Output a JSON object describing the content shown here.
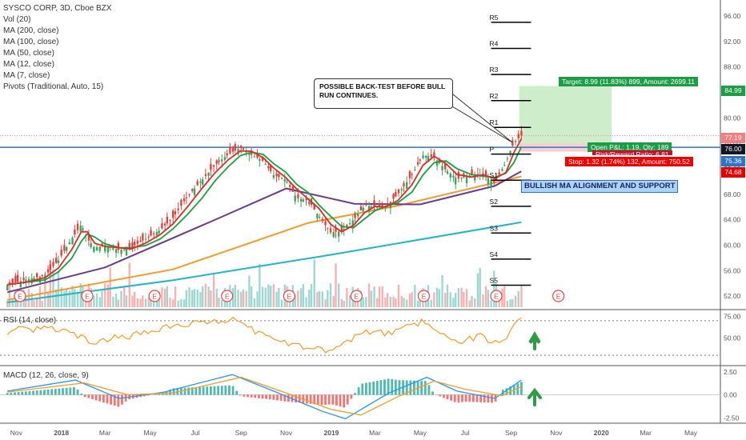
{
  "legend": {
    "title": "SYSCO CORP, 3D, Cboe BZX",
    "items": [
      "Vol (20)",
      "MA (200, close)",
      "MA (100, close)",
      "MA (50, close)",
      "MA (12, close)",
      "MA (7, close)",
      "Pivots (Traditional, Auto, 15)"
    ]
  },
  "rsi_label": "RSI (14, close)",
  "macd_label": "MACD (12, 26, close, 9)",
  "callout_text": "POSSIBLE BACK-TEST BEFORE BULL RUN CONTINUES.",
  "position": {
    "target": "Target: 8.99 (11.83%) 899, Amount: 2699.11",
    "open_pl": "Open P&L: 1.19, Qty: 189",
    "risk_reward": "Risk/Reward Ratio: 6.81",
    "stop": "Stop: 1.32 (1.74%) 132, Amount: 750.52"
  },
  "annotation": "BULLISH MA ALIGNMENT AND SUPPORT",
  "price_tags": [
    {
      "value": "84.99",
      "color": "#1b9c45"
    },
    {
      "value": "77.19",
      "color": "#f57f7f"
    },
    {
      "value": "76.00",
      "color": "#131722"
    },
    {
      "value": "75.36",
      "color": "#2f73c5"
    },
    {
      "value": "74.68",
      "color": "#e00000"
    }
  ],
  "colors": {
    "up": "#26a69a",
    "down": "#ef5350",
    "candle_up": "#3aa35b",
    "candle_down": "#e0403b",
    "ma200": "#1fb5c9",
    "ma100": "#f39a2c",
    "ma50": "#6a3a8c",
    "ma12": "#1a9e3f",
    "ma7": "#d92b2b",
    "support_line": "#2f73c5",
    "rsi": "#f39a2c",
    "macd": "#2196f3",
    "signal": "#f39a2c",
    "target_zone": "#b9e6b5",
    "stop_zone": "#f6c3c3"
  },
  "chart_data": {
    "type": "candlestick",
    "title": "SYSCO CORP, 3D, Cboe BZX",
    "x_ticks": [
      "Nov",
      "2018",
      "Mar",
      "May",
      "Jul",
      "Sep",
      "Nov",
      "2019",
      "Mar",
      "May",
      "Jul",
      "Sep",
      "Nov",
      "2020",
      "Mar",
      "May"
    ],
    "y_ticks": [
      "96.00",
      "92.00",
      "88.00",
      "84.00",
      "80.00",
      "76.00",
      "72.00",
      "68.00",
      "64.00",
      "60.00",
      "56.00",
      "52.00"
    ],
    "ylim": [
      50,
      98
    ],
    "price_series": [
      {
        "name": "close",
        "points": [
          [
            "2017-10-20",
            53.8
          ],
          [
            "2017-11-15",
            54.6
          ],
          [
            "2017-12-10",
            55.2
          ],
          [
            "2017-12-28",
            57.6
          ],
          [
            "2018-01-15",
            61.0
          ],
          [
            "2018-01-28",
            63.2
          ],
          [
            "2018-02-05",
            61.0
          ],
          [
            "2018-02-15",
            59.6
          ],
          [
            "2018-03-01",
            60.0
          ],
          [
            "2018-03-20",
            59.2
          ],
          [
            "2018-04-05",
            59.6
          ],
          [
            "2018-04-25",
            61.0
          ],
          [
            "2018-05-15",
            62.4
          ],
          [
            "2018-06-01",
            64.3
          ],
          [
            "2018-06-20",
            67.6
          ],
          [
            "2018-07-10",
            70.2
          ],
          [
            "2018-07-28",
            72.6
          ],
          [
            "2018-08-15",
            74.3
          ],
          [
            "2018-08-31",
            75.3
          ],
          [
            "2018-09-15",
            74.2
          ],
          [
            "2018-10-01",
            73.2
          ],
          [
            "2018-10-15",
            71.0
          ],
          [
            "2018-10-31",
            70.3
          ],
          [
            "2018-11-15",
            67.4
          ],
          [
            "2018-12-01",
            67.0
          ],
          [
            "2018-12-15",
            64.6
          ],
          [
            "2018-12-31",
            62.0
          ],
          [
            "2019-01-15",
            62.2
          ],
          [
            "2019-01-31",
            64.0
          ],
          [
            "2019-02-15",
            66.2
          ],
          [
            "2019-03-01",
            66.0
          ],
          [
            "2019-03-15",
            66.0
          ],
          [
            "2019-04-01",
            68.0
          ],
          [
            "2019-04-20",
            71.0
          ],
          [
            "2019-05-05",
            74.1
          ],
          [
            "2019-05-20",
            73.8
          ],
          [
            "2019-06-05",
            71.8
          ],
          [
            "2019-06-20",
            70.4
          ],
          [
            "2019-07-10",
            71.0
          ],
          [
            "2019-07-25",
            71.1
          ],
          [
            "2019-08-10",
            69.8
          ],
          [
            "2019-08-25",
            73.0
          ],
          [
            "2019-09-05",
            76.2
          ],
          [
            "2019-09-15",
            77.19
          ]
        ]
      },
      {
        "name": "MA (200, close)",
        "points": [
          [
            "2017-10-20",
            51.0
          ],
          [
            "2018-06-01",
            54.5
          ],
          [
            "2019-01-01",
            58.5
          ],
          [
            "2019-09-15",
            63.6
          ]
        ]
      },
      {
        "name": "MA (100, close)",
        "points": [
          [
            "2017-10-20",
            51.4
          ],
          [
            "2018-06-01",
            56.2
          ],
          [
            "2018-12-01",
            63.5
          ],
          [
            "2019-04-01",
            66.2
          ],
          [
            "2019-09-15",
            70.8
          ]
        ]
      },
      {
        "name": "MA (50, close)",
        "points": [
          [
            "2017-10-20",
            52.6
          ],
          [
            "2018-03-01",
            56.5
          ],
          [
            "2018-08-01",
            64.2
          ],
          [
            "2018-11-01",
            68.9
          ],
          [
            "2019-02-01",
            66.5
          ],
          [
            "2019-05-01",
            66.4
          ],
          [
            "2019-08-10",
            69.3
          ],
          [
            "2019-09-15",
            71.6
          ]
        ]
      }
    ],
    "pivots": [
      {
        "label": "R5",
        "value": 95.0
      },
      {
        "label": "R4",
        "value": 90.9
      },
      {
        "label": "R3",
        "value": 86.8
      },
      {
        "label": "R2",
        "value": 82.7
      },
      {
        "label": "R1",
        "value": 78.5
      },
      {
        "label": "P",
        "value": 74.3
      },
      {
        "label": "S1",
        "value": 70.2
      },
      {
        "label": "S2",
        "value": 66.1
      },
      {
        "label": "S3",
        "value": 61.9
      },
      {
        "label": "S4",
        "value": 57.8
      },
      {
        "label": "S5",
        "value": 53.7
      }
    ],
    "horizontal_lines": [
      {
        "name": "support",
        "value": 75.36
      },
      {
        "name": "last",
        "value": 77.19
      }
    ],
    "position": {
      "entry": 76.0,
      "target": 84.99,
      "stop": 74.68
    },
    "earnings_markers": [
      "2017-11-06",
      "2018-02-05",
      "2018-05-07",
      "2018-08-13",
      "2018-11-05",
      "2019-02-04",
      "2019-05-06",
      "2019-08-12",
      "2019-11-04"
    ],
    "rsi": {
      "ylim": [
        20,
        80
      ],
      "ticks": [
        "75.00",
        "50.00"
      ],
      "levels": [
        70,
        30
      ],
      "values": [
        [
          "2017-10-20",
          58
        ],
        [
          "2017-12-20",
          62
        ],
        [
          "2018-02-10",
          46
        ],
        [
          "2018-04-15",
          54
        ],
        [
          "2018-06-15",
          66
        ],
        [
          "2018-08-25",
          72
        ],
        [
          "2018-10-01",
          52
        ],
        [
          "2018-11-20",
          40
        ],
        [
          "2019-01-01",
          36
        ],
        [
          "2019-02-15",
          58
        ],
        [
          "2019-03-20",
          55
        ],
        [
          "2019-05-05",
          70
        ],
        [
          "2019-06-15",
          44
        ],
        [
          "2019-07-25",
          52
        ],
        [
          "2019-08-15",
          42
        ],
        [
          "2019-09-15",
          73
        ]
      ]
    },
    "macd": {
      "ylim": [
        -3,
        3
      ],
      "ticks": [
        "2.50",
        "0.00",
        "-2.50"
      ],
      "macd": [
        [
          "2017-10-20",
          0.4
        ],
        [
          "2018-01-20",
          1.6
        ],
        [
          "2018-03-20",
          -0.4
        ],
        [
          "2018-05-20",
          0.3
        ],
        [
          "2018-08-20",
          2.2
        ],
        [
          "2018-10-15",
          0.4
        ],
        [
          "2018-12-20",
          -1.8
        ],
        [
          "2019-01-20",
          -2.6
        ],
        [
          "2019-03-20",
          0.2
        ],
        [
          "2019-05-10",
          1.9
        ],
        [
          "2019-06-20",
          0.4
        ],
        [
          "2019-08-10",
          -0.4
        ],
        [
          "2019-09-15",
          1.6
        ]
      ],
      "signal": [
        [
          "2017-10-20",
          0.3
        ],
        [
          "2018-02-01",
          1.3
        ],
        [
          "2018-04-01",
          0.0
        ],
        [
          "2018-06-01",
          0.2
        ],
        [
          "2018-09-01",
          1.9
        ],
        [
          "2018-11-01",
          0.2
        ],
        [
          "2019-01-01",
          -1.6
        ],
        [
          "2019-02-10",
          -2.2
        ],
        [
          "2019-04-01",
          -0.2
        ],
        [
          "2019-05-20",
          1.5
        ],
        [
          "2019-07-01",
          0.6
        ],
        [
          "2019-08-20",
          -0.1
        ],
        [
          "2019-09-15",
          0.9
        ]
      ]
    }
  }
}
